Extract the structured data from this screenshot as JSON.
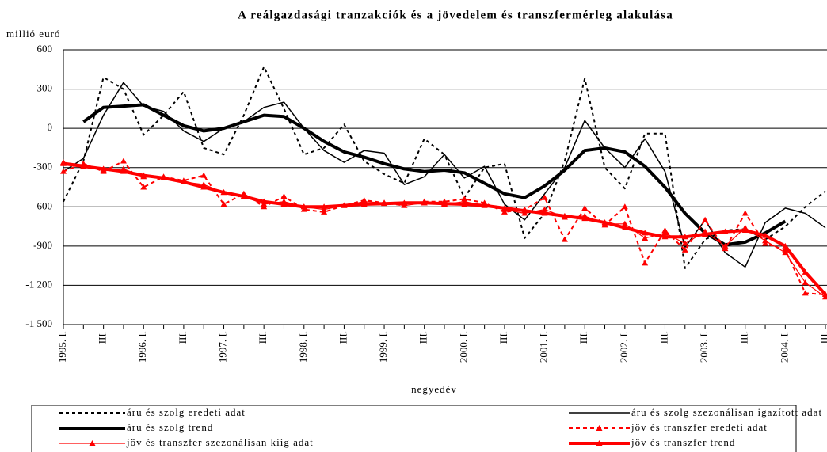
{
  "chart_data": {
    "type": "line",
    "title": "A reálgazdasági tranzakciók és a jövedelem és transzfermérleg alakulása",
    "y_label": "millió euró",
    "x_label": "negyedév",
    "categories": [
      "1995. I.",
      null,
      "III.",
      null,
      "1996. I.",
      null,
      "III.",
      null,
      "1997. I.",
      null,
      "III.",
      null,
      "1998. I.",
      null,
      "III.",
      null,
      "1999. I.",
      null,
      "III.",
      null,
      "2000. I.",
      null,
      "III.",
      null,
      "2001. I.",
      null,
      "III.",
      null,
      "2002. I.",
      null,
      "III.",
      null,
      "2003. I.",
      null,
      "III.",
      null,
      "2004. I.",
      null,
      "III."
    ],
    "ylim": [
      -1500,
      600
    ],
    "yticks": [
      600,
      300,
      0,
      -300,
      -600,
      -900,
      {
        "value": -1200,
        "label": "-1 200"
      },
      {
        "value": -1500,
        "label": "-1 500"
      }
    ],
    "grid": true,
    "series": [
      {
        "name": "áru és szolg eredeti adat",
        "color": "#000000",
        "width": 2,
        "dash": "4 4",
        "marker": false,
        "values": [
          -560,
          -250,
          390,
          300,
          -50,
          100,
          280,
          -150,
          -200,
          100,
          470,
          150,
          -200,
          -150,
          30,
          -250,
          -350,
          -420,
          -80,
          -200,
          -530,
          -300,
          -270,
          -840,
          -650,
          -250,
          380,
          -300,
          -460,
          -40,
          -40,
          -1070,
          -850,
          -780,
          -770,
          -850,
          -750,
          -600,
          -480
        ]
      },
      {
        "name": "áru és szolg szezonálisan igazított adat",
        "color": "#000000",
        "width": 1.5,
        "dash": "",
        "marker": false,
        "values": [
          -330,
          -230,
          100,
          350,
          170,
          130,
          -20,
          -100,
          0,
          50,
          160,
          200,
          0,
          -170,
          -260,
          -170,
          -190,
          -430,
          -370,
          -200,
          -380,
          -290,
          -580,
          -700,
          -500,
          -300,
          60,
          -150,
          -300,
          -80,
          -330,
          -910,
          -700,
          -950,
          -1060,
          -720,
          -610,
          -650,
          -760
        ]
      },
      {
        "name": "áru és szolg trend",
        "color": "#000000",
        "width": 4,
        "dash": "",
        "marker": false,
        "values": [
          null,
          50,
          160,
          170,
          180,
          100,
          20,
          -20,
          0,
          50,
          100,
          90,
          0,
          -100,
          -180,
          -220,
          -270,
          -310,
          -330,
          -320,
          -340,
          -420,
          -500,
          -530,
          -440,
          -320,
          -170,
          -150,
          -180,
          -290,
          -450,
          -650,
          -800,
          -890,
          -870,
          -800,
          -710,
          null,
          null
        ]
      },
      {
        "name": "jöv és transzfer eredeti adat",
        "color": "#ff0000",
        "width": 2,
        "dash": "5 4",
        "marker": true,
        "values": [
          -330,
          -270,
          -330,
          -250,
          -450,
          -370,
          -400,
          -360,
          -580,
          -500,
          -600,
          -520,
          -620,
          -640,
          -590,
          -550,
          -570,
          -590,
          -560,
          -560,
          -540,
          -570,
          -640,
          -620,
          -530,
          -850,
          -610,
          -740,
          -600,
          -1030,
          -780,
          -930,
          -700,
          -920,
          -650,
          -880,
          -930,
          -1260,
          -1270
        ]
      },
      {
        "name": "jöv és transzfer szezonálisan kiig adat",
        "color": "#ff0000",
        "width": 1.2,
        "dash": "",
        "marker": true,
        "values": [
          -260,
          -280,
          -320,
          -310,
          -370,
          -380,
          -410,
          -430,
          -490,
          -520,
          -580,
          -560,
          -600,
          -620,
          -590,
          -560,
          -570,
          -590,
          -570,
          -580,
          -560,
          -590,
          -620,
          -650,
          -620,
          -680,
          -670,
          -730,
          -730,
          -840,
          -800,
          -880,
          -790,
          -900,
          -760,
          -860,
          -950,
          -1180,
          -1290
        ]
      },
      {
        "name": "jöv és transzfer trend",
        "color": "#ff0000",
        "width": 4,
        "dash": "",
        "marker": true,
        "values": [
          -270,
          -290,
          -310,
          -330,
          -360,
          -380,
          -410,
          -450,
          -490,
          -520,
          -560,
          -580,
          -600,
          -600,
          -590,
          -580,
          -575,
          -570,
          -570,
          -575,
          -580,
          -590,
          -610,
          -630,
          -650,
          -670,
          -690,
          -720,
          -760,
          -800,
          -830,
          -830,
          -810,
          -790,
          -780,
          -820,
          -900,
          -1100,
          -1270
        ]
      }
    ]
  }
}
